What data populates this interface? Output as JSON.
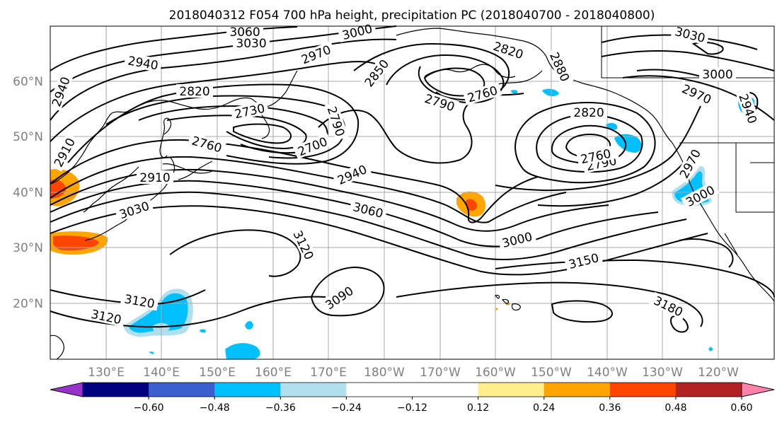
{
  "title": "2018040312 F054 700 hPa height, precipitation PC (2018040700 - 2018040800)",
  "lat_labels": [
    "60°N",
    "50°N",
    "40°N",
    "30°N",
    "20°N"
  ],
  "lon_labels": [
    "130°E",
    "140°E",
    "150°E",
    "160°E",
    "170°E",
    "180°W",
    "170°W",
    "160°W",
    "150°W",
    "140°W",
    "130°W",
    "120°W"
  ],
  "colorbar": {
    "colors": [
      "#9932cc",
      "#000080",
      "#3a5fcd",
      "#00bfff",
      "#b2dfee",
      "#ffffff",
      "#ffffff",
      "#ffec8b",
      "#ffa500",
      "#ff4500",
      "#b22222",
      "#ff82ab"
    ],
    "tick_labels": [
      "−0.60",
      "−0.48",
      "−0.36",
      "−0.24",
      "−0.12",
      "0.12",
      "0.24",
      "0.36",
      "0.48",
      "0.60"
    ]
  },
  "contour_labels": [
    "3060",
    "3000",
    "3030",
    "3030",
    "2970",
    "2820",
    "2880",
    "3000",
    "2940",
    "2850",
    "2970",
    "2940",
    "2820",
    "2790",
    "2760",
    "2730",
    "2790",
    "2820",
    "2940",
    "2700",
    "2760",
    "2790",
    "2760",
    "2910",
    "2970",
    "2910",
    "2940",
    "3030",
    "3060",
    "3000",
    "3000",
    "3120",
    "3150",
    "3090",
    "3120",
    "3180",
    "3120"
  ]
}
